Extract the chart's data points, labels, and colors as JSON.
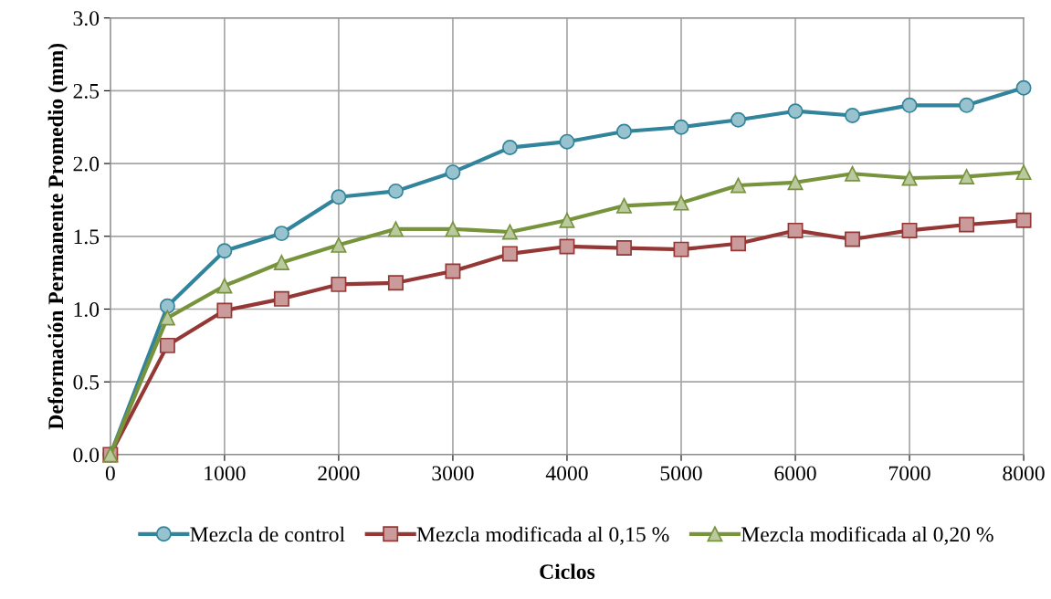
{
  "chart_data": {
    "type": "line",
    "xlabel": "Ciclos",
    "ylabel": "Deformación Permanente Promedio (mm)",
    "x": [
      0,
      500,
      1000,
      1500,
      2000,
      2500,
      3000,
      3500,
      4000,
      4500,
      5000,
      5500,
      6000,
      6500,
      7000,
      7500,
      8000
    ],
    "series": [
      {
        "name": "Mezcla de control",
        "color": "#31849b",
        "marker": "circle",
        "values": [
          0,
          1.02,
          1.4,
          1.52,
          1.77,
          1.81,
          1.94,
          2.11,
          2.15,
          2.22,
          2.25,
          2.3,
          2.36,
          2.33,
          2.4,
          2.4,
          2.52
        ]
      },
      {
        "name": "Mezcla modificada al 0,15 %",
        "color": "#953735",
        "marker": "square",
        "values": [
          0,
          0.75,
          0.99,
          1.07,
          1.17,
          1.18,
          1.26,
          1.38,
          1.43,
          1.42,
          1.41,
          1.45,
          1.54,
          1.48,
          1.54,
          1.58,
          1.61
        ]
      },
      {
        "name": "Mezcla modificada al 0,20 %",
        "color": "#77933c",
        "marker": "triangle",
        "values": [
          0,
          0.94,
          1.16,
          1.32,
          1.44,
          1.55,
          1.55,
          1.53,
          1.61,
          1.71,
          1.73,
          1.85,
          1.87,
          1.93,
          1.9,
          1.91,
          1.94
        ]
      }
    ],
    "xlim": [
      0,
      8000
    ],
    "xticks": [
      0,
      1000,
      2000,
      3000,
      4000,
      5000,
      6000,
      7000,
      8000
    ],
    "ylim": [
      0,
      3
    ],
    "yticks": [
      {
        "value": 0,
        "label": "0.0"
      },
      {
        "value": 0.5,
        "label": "0.5"
      },
      {
        "value": 1,
        "label": "1.0"
      },
      {
        "value": 1.5,
        "label": "1.5"
      },
      {
        "value": 2,
        "label": "2.0"
      },
      {
        "value": 2.5,
        "label": "2.5"
      },
      {
        "value": 3,
        "label": "3.0"
      }
    ],
    "grid": true,
    "legend": "bottom",
    "line_style": "solid"
  }
}
